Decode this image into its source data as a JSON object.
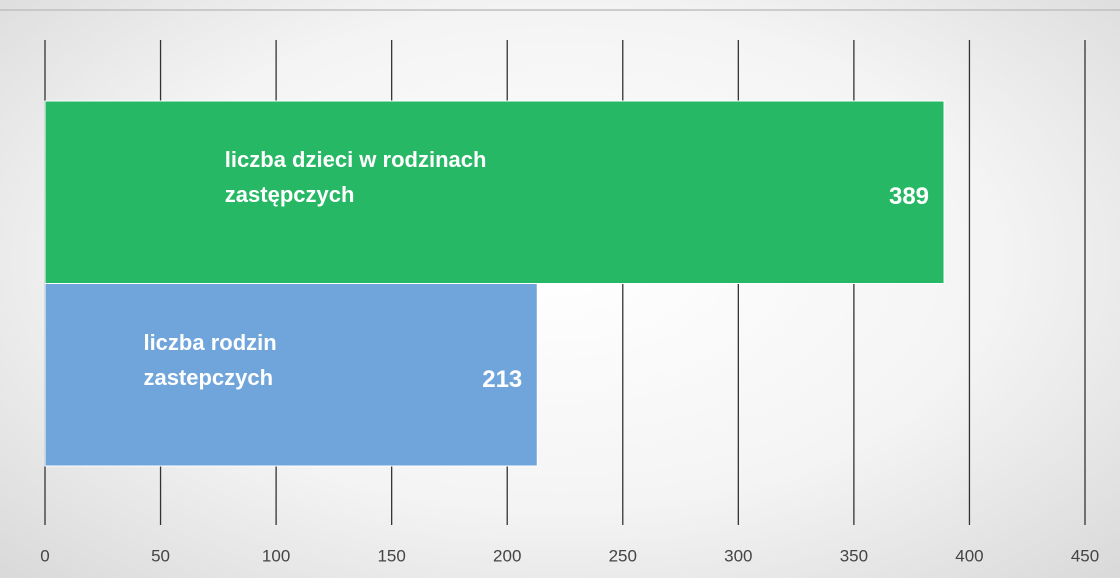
{
  "chart_data": {
    "type": "bar",
    "orientation": "horizontal",
    "categories": [
      "liczba dzieci w rodzinach zastępczych",
      "liczba rodzin zastepczych"
    ],
    "values": [
      389,
      213
    ],
    "colors": [
      "#27b865",
      "#6fa5db"
    ],
    "xlim": [
      0,
      450
    ],
    "xticks": [
      0,
      50,
      100,
      150,
      200,
      250,
      300,
      350,
      400,
      450
    ],
    "grid": true
  }
}
